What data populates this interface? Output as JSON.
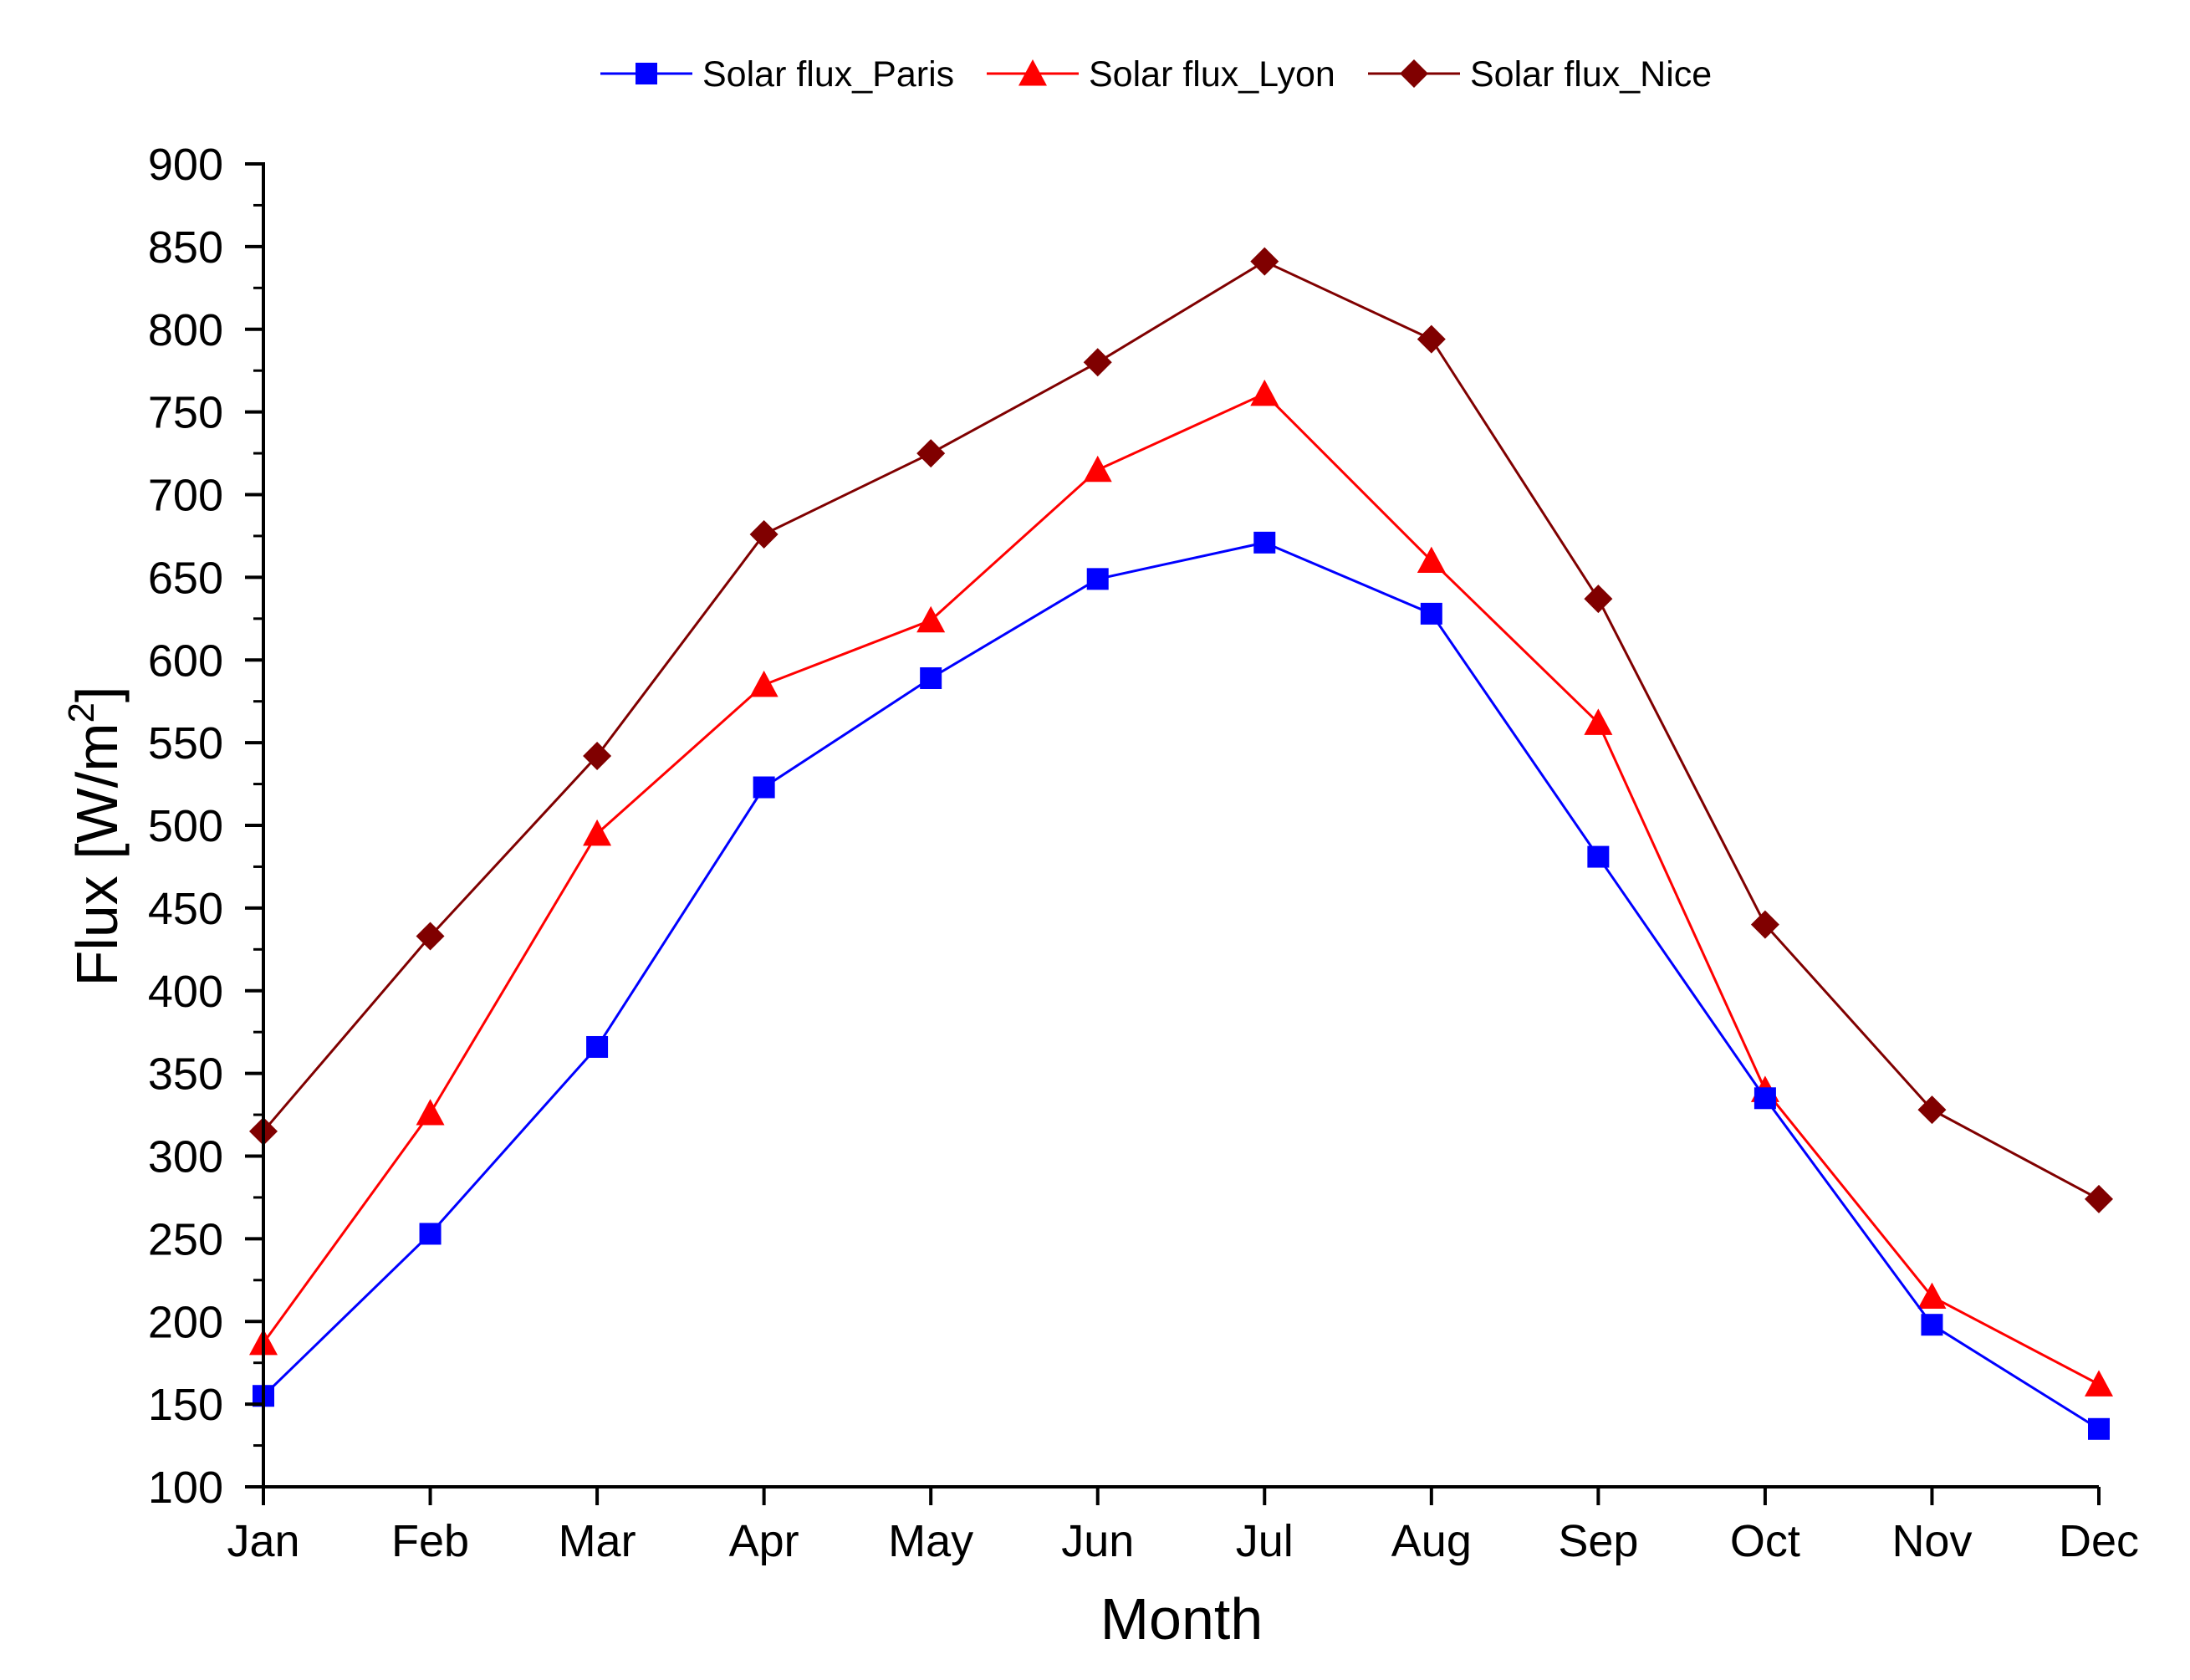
{
  "chart_data": {
    "type": "line",
    "title": "",
    "xlabel": "Month",
    "ylabel_main": "Flux [W/m",
    "ylabel_sup": "2",
    "ylabel_close": "]",
    "categories": [
      "Jan",
      "Feb",
      "Mar",
      "Apr",
      "May",
      "Jun",
      "Jul",
      "Aug",
      "Sep",
      "Oct",
      "Nov",
      "Dec"
    ],
    "ylim": [
      100,
      900
    ],
    "yticks": [
      100,
      150,
      200,
      250,
      300,
      350,
      400,
      450,
      500,
      550,
      600,
      650,
      700,
      750,
      800,
      850,
      900
    ],
    "grid": false,
    "legend_position": "top-center",
    "series": [
      {
        "name": "Solar flux_Paris",
        "color": "#0000ff",
        "marker": "square",
        "values": [
          155,
          253,
          366,
          523,
          589,
          649,
          671,
          628,
          481,
          335,
          198,
          135
        ]
      },
      {
        "name": "Solar flux_Lyon",
        "color": "#ff0000",
        "marker": "triangle",
        "values": [
          187,
          326,
          495,
          585,
          624,
          715,
          761,
          660,
          562,
          340,
          215,
          162
        ]
      },
      {
        "name": "Solar flux_Nice",
        "color": "#800000",
        "marker": "diamond",
        "values": [
          315,
          433,
          542,
          676,
          725,
          780,
          841,
          794,
          637,
          440,
          328,
          274
        ]
      }
    ]
  }
}
